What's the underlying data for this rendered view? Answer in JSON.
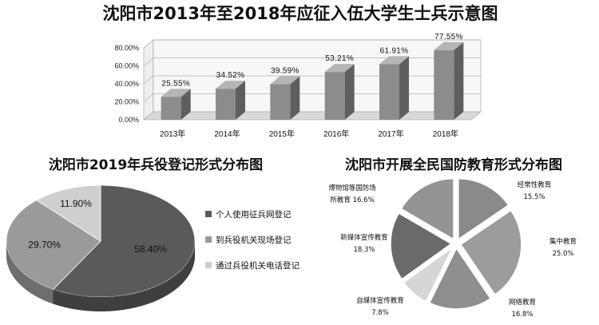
{
  "chart_data": [
    {
      "type": "bar",
      "title": "沈阳市2013年至2018年应征入伍大学生士兵示意图",
      "categories": [
        "2013年",
        "2014年",
        "2015年",
        "2016年",
        "2017年",
        "2018年"
      ],
      "values": [
        25.55,
        34.52,
        39.59,
        53.21,
        61.91,
        77.55
      ],
      "value_labels": [
        "25.55%",
        "34.52%",
        "39.59%",
        "53.21%",
        "61.91%",
        "77.55%"
      ],
      "yticks": [
        "0.00%",
        "20.00%",
        "40.00%",
        "60.00%",
        "80.00%"
      ],
      "ylim": [
        0,
        80
      ],
      "grid": true,
      "colors": {
        "bar_front": "#8c8c8c",
        "bar_side": "#5e5e5e",
        "bar_top": "#b5b5b5"
      }
    },
    {
      "type": "pie",
      "title": "沈阳市2019年兵役登记形式分布图",
      "labels": [
        "个人使用征兵网登记",
        "到兵役机关现场登记",
        "通过兵役机关电话登记"
      ],
      "values": [
        58.4,
        29.7,
        11.9
      ],
      "value_labels": [
        "58.40%",
        "29.70%",
        "11.90%"
      ],
      "legend": "right",
      "colors": [
        "#5a5a5a",
        "#9a9a9a",
        "#cfcfcf"
      ]
    },
    {
      "type": "pie",
      "title": "沈阳市开展全民国防教育形式分布图",
      "labels": [
        "经常性教育",
        "集中教育",
        "网络教育",
        "自媒体宣传教育",
        "新媒体宣传教育",
        "博物馆等国防场所教育"
      ],
      "label_lines": [
        [
          "经常性教育"
        ],
        [
          "集中教育"
        ],
        [
          "网络教育"
        ],
        [
          "自媒体宣传教育"
        ],
        [
          "新媒体宣传教育"
        ],
        [
          "博物馆等国防场",
          "所教育"
        ]
      ],
      "values": [
        15.5,
        25.0,
        16.8,
        7.8,
        18.3,
        16.6
      ],
      "value_labels": [
        "15.5%",
        "25.0%",
        "16.8%",
        "7.8%",
        "18.3%",
        "16.6%"
      ],
      "colors": [
        "#8a8a8a",
        "#9c9c9c",
        "#8f8f8f",
        "#d6d6d6",
        "#6a6a6a",
        "#949494"
      ]
    }
  ]
}
